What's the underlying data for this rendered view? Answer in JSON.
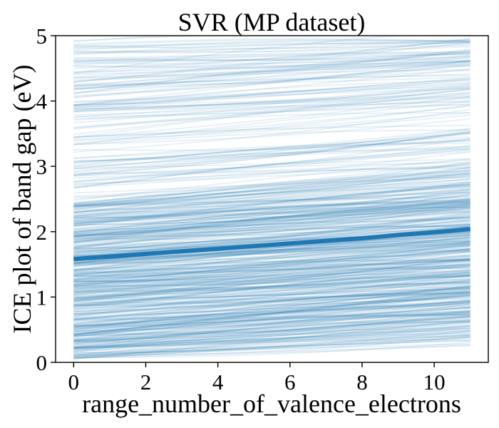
{
  "chart_data": {
    "type": "line",
    "title": "SVR (MP dataset)",
    "xlabel": "range_number_of_valence_electrons",
    "ylabel": "ICE plot of band gap (eV)",
    "xlim": [
      -0.5,
      11.5
    ],
    "ylim": [
      0,
      5
    ],
    "xticks": [
      0,
      2,
      4,
      6,
      8,
      10
    ],
    "yticks": [
      0,
      1,
      2,
      3,
      4,
      5
    ],
    "grid": false,
    "legend": "none",
    "colors": {
      "series": "#1f77b4",
      "axes": "#000000",
      "background": "#ffffff"
    },
    "ice_curves": {
      "count": 600,
      "x_range": [
        0,
        11
      ],
      "start_range": [
        0.05,
        4.95
      ],
      "typical_rise": 0.45,
      "opacity": 0.1,
      "line_width": 2
    },
    "series": [
      {
        "x": [
          0,
          1,
          2,
          3,
          4,
          5,
          6,
          7,
          8,
          9,
          10,
          11
        ],
        "y": [
          1.58,
          1.62,
          1.66,
          1.7,
          1.74,
          1.78,
          1.82,
          1.86,
          1.9,
          1.95,
          1.99,
          2.04
        ]
      }
    ]
  }
}
